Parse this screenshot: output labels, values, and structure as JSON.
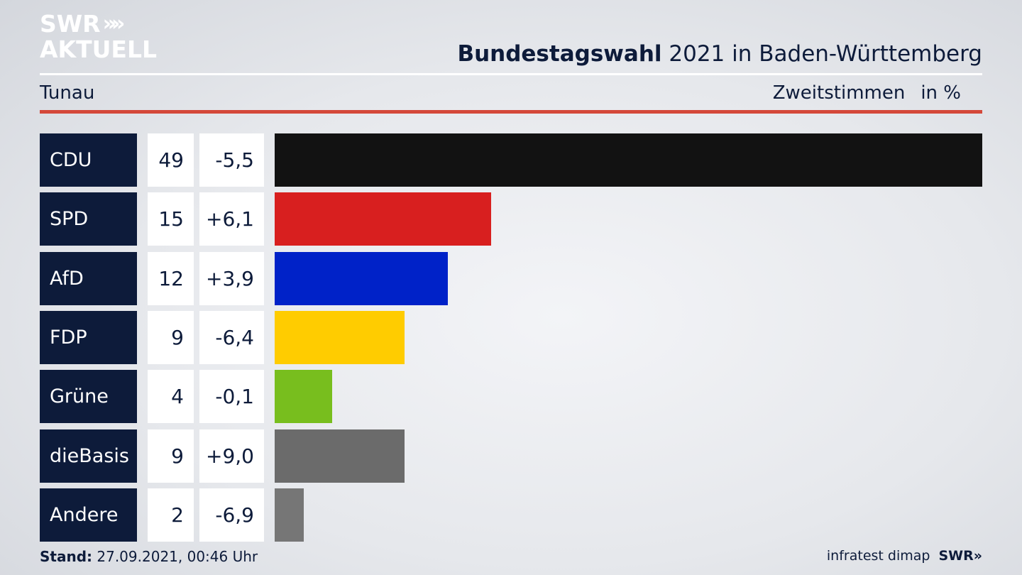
{
  "logo": {
    "line1": "SWR",
    "chevrons": "»",
    "line2": "AKTUELL"
  },
  "header": {
    "title_bold": "Bundestagswahl",
    "title_rest": "2021 in Baden-Württemberg",
    "location": "Tunau",
    "measure": "Zweitstimmen",
    "unit": "in %"
  },
  "chart_data": {
    "type": "bar",
    "orientation": "horizontal",
    "categories": [
      "CDU",
      "SPD",
      "AfD",
      "FDP",
      "Grüne",
      "dieBasis",
      "Andere"
    ],
    "values": [
      49,
      15,
      12,
      9,
      4,
      9,
      2
    ],
    "value_labels": [
      "49",
      "15",
      "12",
      "9",
      "4",
      "9",
      "2"
    ],
    "changes": [
      "-5,5",
      "+6,1",
      "+3,9",
      "-6,4",
      "-0,1",
      "+9,0",
      "-6,9"
    ],
    "colors": [
      "#121212",
      "#d81f1f",
      "#0022c8",
      "#ffcc00",
      "#78be1e",
      "#6b6b6b",
      "#767676"
    ],
    "xlim": [
      0,
      49
    ]
  },
  "footer": {
    "stand_label": "Stand:",
    "stand_value": "27.09.2021, 00:46 Uhr",
    "source": "infratest dimap",
    "brand": "SWR»"
  }
}
